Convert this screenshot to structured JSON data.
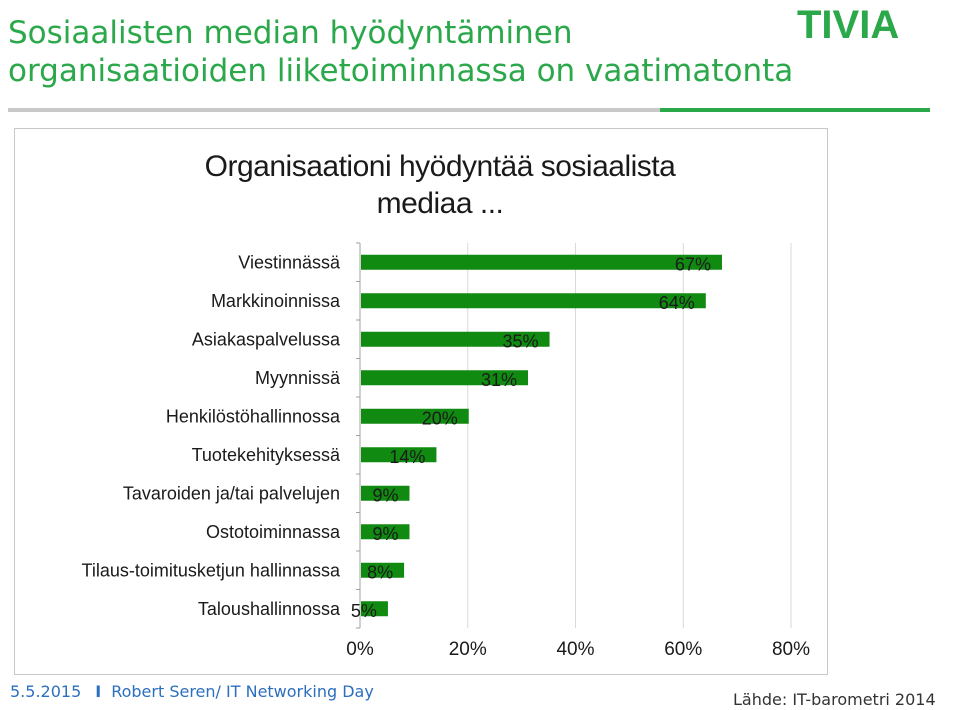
{
  "slide": {
    "title_line1": "Sosiaalisten median hyödyntäminen",
    "title_line2": "organisaatioiden liiketoiminnassa on vaatimatonta",
    "logo_text": "TIVIA",
    "footer_date": "5.5.2015",
    "footer_separator": "I",
    "footer_presenter": "Robert Seren/ IT Networking Day",
    "source": "Lähde: IT-barometri 2014"
  },
  "colors": {
    "brand_green": "#2aa84a",
    "bar_green": "#108a10",
    "footer_blue": "#2b6fbf"
  },
  "chart_data": {
    "type": "bar",
    "orientation": "horizontal",
    "title_line1": "Organisaationi hyödyntää sosiaalista",
    "title_line2": "mediaa ...",
    "categories": [
      "Viestinnässä",
      "Markkinoinnissa",
      "Asiakaspalvelussa",
      "Myynnissä",
      "Henkilöstöhallinnossa",
      "Tuotekehityksessä",
      "Tavaroiden ja/tai palvelujen",
      "Ostotoiminnassa",
      "Tilaus-toimitusketjun hallinnassa",
      "Taloushallinnossa"
    ],
    "values": [
      67,
      64,
      35,
      31,
      20,
      14,
      9,
      9,
      8,
      5
    ],
    "value_labels": [
      "67%",
      "64%",
      "35%",
      "31%",
      "20%",
      "14%",
      "9%",
      "9%",
      "8%",
      "5%"
    ],
    "xlim": [
      0,
      80
    ],
    "xticks": [
      0,
      20,
      40,
      60,
      80
    ],
    "xtick_labels": [
      "0%",
      "20%",
      "40%",
      "60%",
      "80%"
    ],
    "grid": true,
    "legend": "none"
  }
}
